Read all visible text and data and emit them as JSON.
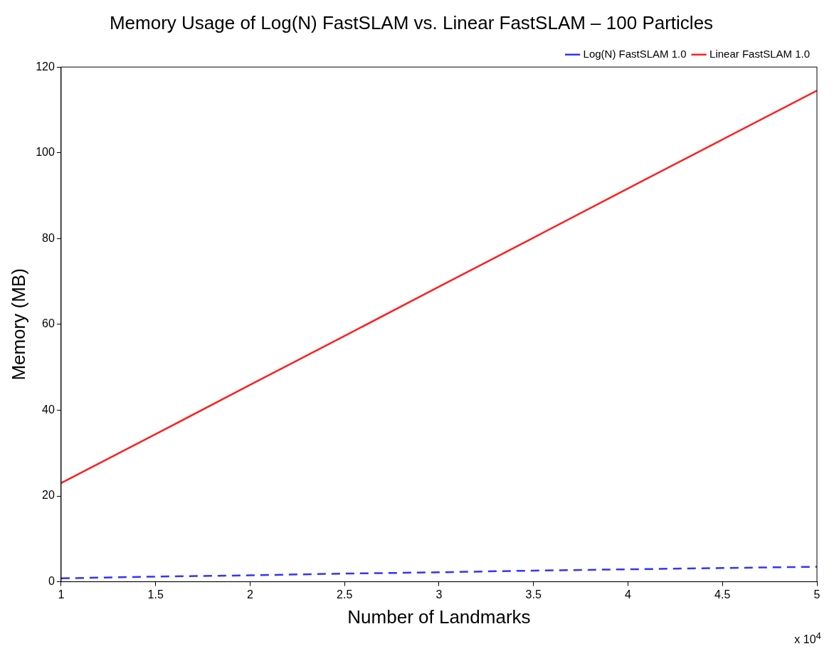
{
  "chart_data": {
    "type": "line",
    "title": "Memory Usage of Log(N) FastSLAM vs. Linear FastSLAM – 100 Particles",
    "xlabel": "Number of Landmarks",
    "ylabel": "Memory (MB)",
    "x": [
      1,
      1.5,
      2,
      2.5,
      3,
      3.5,
      4,
      4.5,
      5
    ],
    "series": [
      {
        "name": "Log(N) FastSLAM 1.0",
        "color": "#3333ff",
        "line_style": "dashed",
        "values": [
          0.8,
          1.2,
          1.5,
          1.9,
          2.2,
          2.6,
          2.9,
          3.2,
          3.5
        ]
      },
      {
        "name": "Linear FastSLAM 1.0",
        "color": "#ff2020",
        "line_style": "solid",
        "values": [
          23,
          34.4,
          45.9,
          57.3,
          68.8,
          80.2,
          91.7,
          103.1,
          114.5
        ]
      }
    ],
    "xlim": [
      1,
      5
    ],
    "xticks": [
      1,
      1.5,
      2,
      2.5,
      3,
      3.5,
      4,
      4.5,
      5
    ],
    "ylim": [
      0,
      120
    ],
    "yticks": [
      0,
      20,
      40,
      60,
      80,
      100,
      120
    ],
    "grid": false,
    "legend": "top right",
    "marker": "none",
    "annotations": [
      "x 10$^{4}$"
    ]
  }
}
